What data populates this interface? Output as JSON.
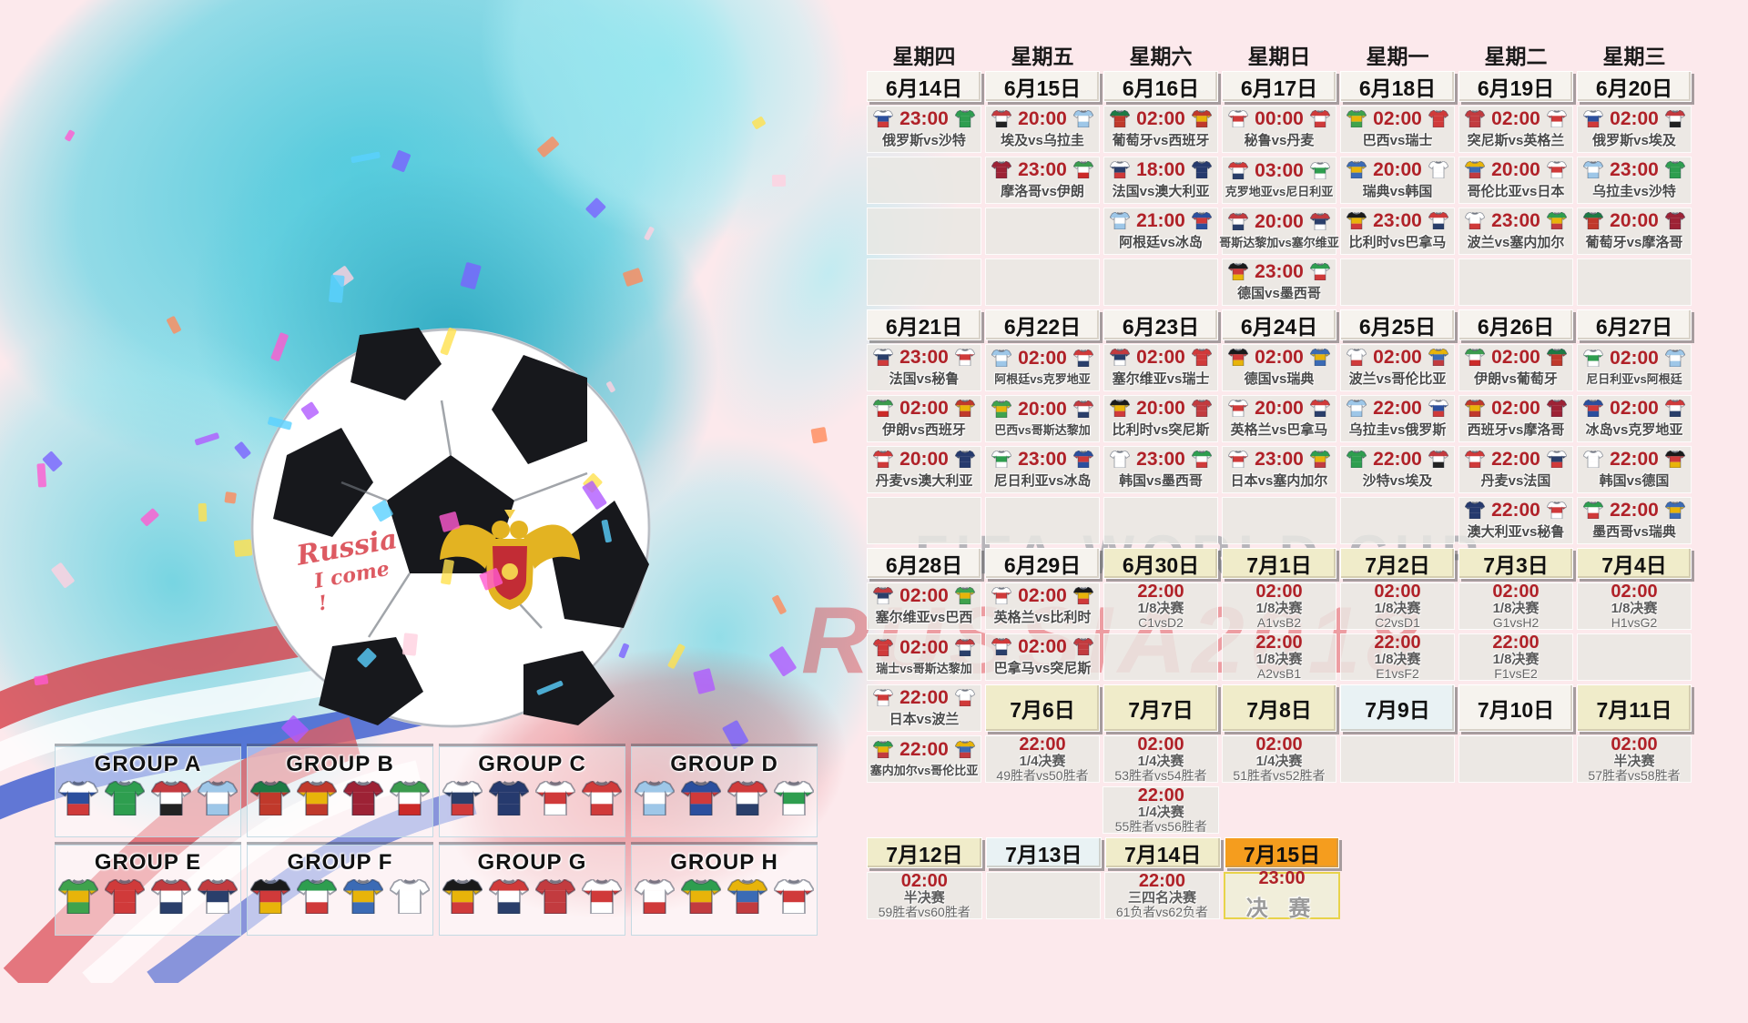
{
  "watermark": {
    "line1": "FIFA WORLD CUP",
    "line2": "RUSSIA2018"
  },
  "handwriting": {
    "line1": "Russia",
    "line2": "I come !"
  },
  "colors": {
    "time_red": "#b02128",
    "date_plain": "#f6f3ee",
    "date_cream": "#f0ecca",
    "date_orange": "#f59d1e",
    "background_pink": "#fce9ec",
    "splash_cyan": "#49c8db",
    "watermark_gray": "#8e969d",
    "watermark_red": "#d9363e"
  },
  "weekdays": [
    "星期四",
    "星期五",
    "星期六",
    "星期日",
    "星期一",
    "星期二",
    "星期三"
  ],
  "teams": {
    "俄罗斯": [
      "#ffffff",
      "#2b4f9e",
      "#d03a3a"
    ],
    "沙特": [
      "#2e9e4f",
      "#2e9e4f",
      "#2e9e4f"
    ],
    "埃及": [
      "#c43a3f",
      "#ffffff",
      "#222222"
    ],
    "乌拉圭": [
      "#9ec7e8",
      "#ffffff",
      "#9ec7e8"
    ],
    "摩洛哥": [
      "#9d2235",
      "#9d2235",
      "#9d2235"
    ],
    "伊朗": [
      "#3b9b4e",
      "#ffffff",
      "#cc2a28"
    ],
    "葡萄牙": [
      "#1d7a44",
      "#c0392b",
      "#c0392b"
    ],
    "西班牙": [
      "#c0392b",
      "#e8b40a",
      "#c0392b"
    ],
    "秘鲁": [
      "#ffffff",
      "#d03a3a",
      "#ffffff"
    ],
    "丹麦": [
      "#d03a3a",
      "#ffffff",
      "#d03a3a"
    ],
    "法国": [
      "#ffffff",
      "#2a3f6b",
      "#d03a3a"
    ],
    "澳大利亚": [
      "#263a6e",
      "#263a6e",
      "#263a6e"
    ],
    "克罗地亚": [
      "#d03a3a",
      "#ffffff",
      "#2a3f6b"
    ],
    "尼日利亚": [
      "#ffffff",
      "#2e9e4f",
      "#ffffff"
    ],
    "阿根廷": [
      "#9ec7e8",
      "#ffffff",
      "#9ec7e8"
    ],
    "冰岛": [
      "#2b4f9e",
      "#d03a3a",
      "#2b4f9e"
    ],
    "哥斯达黎加": [
      "#c23b3f",
      "#ffffff",
      "#2a3f6b"
    ],
    "塞尔维亚": [
      "#c23b3f",
      "#2a3f6b",
      "#ffffff"
    ],
    "德国": [
      "#1a1a1a",
      "#d03a3a",
      "#e8b40a"
    ],
    "墨西哥": [
      "#2e9e4f",
      "#ffffff",
      "#d03a3a"
    ],
    "巴西": [
      "#3fa34d",
      "#e8b40a",
      "#3fa34d"
    ],
    "瑞士": [
      "#d03a3a",
      "#d03a3a",
      "#d03a3a"
    ],
    "瑞典": [
      "#3b6bb5",
      "#e8b40a",
      "#3b6bb5"
    ],
    "韩国": [
      "#ffffff",
      "#ffffff",
      "#ffffff"
    ],
    "突尼斯": [
      "#c23b3f",
      "#c23b3f",
      "#c23b3f"
    ],
    "英格兰": [
      "#ffffff",
      "#d03a3a",
      "#ffffff"
    ],
    "哥伦比亚": [
      "#e8b40a",
      "#3b6bb5",
      "#c23b3f"
    ],
    "日本": [
      "#ffffff",
      "#d03a3a",
      "#ffffff"
    ],
    "比利时": [
      "#1a1a1a",
      "#e8b40a",
      "#d03a3a"
    ],
    "巴拿马": [
      "#d03a3a",
      "#ffffff",
      "#2a3f6b"
    ],
    "波兰": [
      "#ffffff",
      "#ffffff",
      "#d03a3a"
    ],
    "塞内加尔": [
      "#2e9e4f",
      "#e8b40a",
      "#c23b3f"
    ]
  },
  "schedule_rows": [
    [
      {
        "t": "wd",
        "label": "星期四"
      },
      {
        "t": "wd",
        "label": "星期五"
      },
      {
        "t": "wd",
        "label": "星期六"
      },
      {
        "t": "wd",
        "label": "星期日"
      },
      {
        "t": "wd",
        "label": "星期一"
      },
      {
        "t": "wd",
        "label": "星期二"
      },
      {
        "t": "wd",
        "label": "星期三"
      }
    ],
    [
      {
        "t": "date",
        "label": "6月14日",
        "v": "plain"
      },
      {
        "t": "date",
        "label": "6月15日",
        "v": "plain"
      },
      {
        "t": "date",
        "label": "6月16日",
        "v": "plain"
      },
      {
        "t": "date",
        "label": "6月17日",
        "v": "plain"
      },
      {
        "t": "date",
        "label": "6月18日",
        "v": "plain"
      },
      {
        "t": "date",
        "label": "6月19日",
        "v": "plain"
      },
      {
        "t": "date",
        "label": "6月20日",
        "v": "plain"
      }
    ],
    [
      {
        "t": "m",
        "time": "23:00",
        "home": "俄罗斯",
        "away": "沙特",
        "label": "俄罗斯vs沙特"
      },
      {
        "t": "m",
        "time": "20:00",
        "home": "埃及",
        "away": "乌拉圭",
        "label": "埃及vs乌拉圭"
      },
      {
        "t": "m",
        "time": "02:00",
        "home": "葡萄牙",
        "away": "西班牙",
        "label": "葡萄牙vs西班牙"
      },
      {
        "t": "m",
        "time": "00:00",
        "home": "秘鲁",
        "away": "丹麦",
        "label": "秘鲁vs丹麦"
      },
      {
        "t": "m",
        "time": "02:00",
        "home": "巴西",
        "away": "瑞士",
        "label": "巴西vs瑞士"
      },
      {
        "t": "m",
        "time": "02:00",
        "home": "突尼斯",
        "away": "英格兰",
        "label": "突尼斯vs英格兰"
      },
      {
        "t": "m",
        "time": "02:00",
        "home": "俄罗斯",
        "away": "埃及",
        "label": "俄罗斯vs埃及"
      }
    ],
    [
      {
        "t": "empty"
      },
      {
        "t": "m",
        "time": "23:00",
        "home": "摩洛哥",
        "away": "伊朗",
        "label": "摩洛哥vs伊朗"
      },
      {
        "t": "m",
        "time": "18:00",
        "home": "法国",
        "away": "澳大利亚",
        "label": "法国vs澳大利亚"
      },
      {
        "t": "m",
        "time": "03:00",
        "home": "克罗地亚",
        "away": "尼日利亚",
        "label": "克罗地亚vs尼日利亚"
      },
      {
        "t": "m",
        "time": "20:00",
        "home": "瑞典",
        "away": "韩国",
        "label": "瑞典vs韩国"
      },
      {
        "t": "m",
        "time": "20:00",
        "home": "哥伦比亚",
        "away": "日本",
        "label": "哥伦比亚vs日本"
      },
      {
        "t": "m",
        "time": "23:00",
        "home": "乌拉圭",
        "away": "沙特",
        "label": "乌拉圭vs沙特"
      }
    ],
    [
      {
        "t": "empty"
      },
      {
        "t": "empty"
      },
      {
        "t": "m",
        "time": "21:00",
        "home": "阿根廷",
        "away": "冰岛",
        "label": "阿根廷vs冰岛"
      },
      {
        "t": "m",
        "time": "20:00",
        "home": "哥斯达黎加",
        "away": "塞尔维亚",
        "label": "哥斯达黎加vs塞尔维亚"
      },
      {
        "t": "m",
        "time": "23:00",
        "home": "比利时",
        "away": "巴拿马",
        "label": "比利时vs巴拿马"
      },
      {
        "t": "m",
        "time": "23:00",
        "home": "波兰",
        "away": "塞内加尔",
        "label": "波兰vs塞内加尔"
      },
      {
        "t": "m",
        "time": "20:00",
        "home": "葡萄牙",
        "away": "摩洛哥",
        "label": "葡萄牙vs摩洛哥"
      }
    ],
    [
      {
        "t": "empty"
      },
      {
        "t": "empty"
      },
      {
        "t": "empty"
      },
      {
        "t": "m",
        "time": "23:00",
        "home": "德国",
        "away": "墨西哥",
        "label": "德国vs墨西哥"
      },
      {
        "t": "empty"
      },
      {
        "t": "empty"
      },
      {
        "t": "empty"
      }
    ],
    [
      {
        "t": "date",
        "label": "6月21日",
        "v": "plain"
      },
      {
        "t": "date",
        "label": "6月22日",
        "v": "plain"
      },
      {
        "t": "date",
        "label": "6月23日",
        "v": "plain"
      },
      {
        "t": "date",
        "label": "6月24日",
        "v": "plain"
      },
      {
        "t": "date",
        "label": "6月25日",
        "v": "plain"
      },
      {
        "t": "date",
        "label": "6月26日",
        "v": "plain"
      },
      {
        "t": "date",
        "label": "6月27日",
        "v": "plain"
      }
    ],
    [
      {
        "t": "m",
        "time": "23:00",
        "home": "法国",
        "away": "秘鲁",
        "label": "法国vs秘鲁"
      },
      {
        "t": "m",
        "time": "02:00",
        "home": "阿根廷",
        "away": "克罗地亚",
        "label": "阿根廷vs克罗地亚"
      },
      {
        "t": "m",
        "time": "02:00",
        "home": "塞尔维亚",
        "away": "瑞士",
        "label": "塞尔维亚vs瑞士"
      },
      {
        "t": "m",
        "time": "02:00",
        "home": "德国",
        "away": "瑞典",
        "label": "德国vs瑞典"
      },
      {
        "t": "m",
        "time": "02:00",
        "home": "波兰",
        "away": "哥伦比亚",
        "label": "波兰vs哥伦比亚"
      },
      {
        "t": "m",
        "time": "02:00",
        "home": "伊朗",
        "away": "葡萄牙",
        "label": "伊朗vs葡萄牙"
      },
      {
        "t": "m",
        "time": "02:00",
        "home": "尼日利亚",
        "away": "阿根廷",
        "label": "尼日利亚vs阿根廷"
      }
    ],
    [
      {
        "t": "m",
        "time": "02:00",
        "home": "伊朗",
        "away": "西班牙",
        "label": "伊朗vs西班牙"
      },
      {
        "t": "m",
        "time": "20:00",
        "home": "巴西",
        "away": "哥斯达黎加",
        "label": "巴西vs哥斯达黎加"
      },
      {
        "t": "m",
        "time": "20:00",
        "home": "比利时",
        "away": "突尼斯",
        "label": "比利时vs突尼斯"
      },
      {
        "t": "m",
        "time": "20:00",
        "home": "英格兰",
        "away": "巴拿马",
        "label": "英格兰vs巴拿马"
      },
      {
        "t": "m",
        "time": "22:00",
        "home": "乌拉圭",
        "away": "俄罗斯",
        "label": "乌拉圭vs俄罗斯"
      },
      {
        "t": "m",
        "time": "02:00",
        "home": "西班牙",
        "away": "摩洛哥",
        "label": "西班牙vs摩洛哥"
      },
      {
        "t": "m",
        "time": "02:00",
        "home": "冰岛",
        "away": "克罗地亚",
        "label": "冰岛vs克罗地亚"
      }
    ],
    [
      {
        "t": "m",
        "time": "20:00",
        "home": "丹麦",
        "away": "澳大利亚",
        "label": "丹麦vs澳大利亚"
      },
      {
        "t": "m",
        "time": "23:00",
        "home": "尼日利亚",
        "away": "冰岛",
        "label": "尼日利亚vs冰岛"
      },
      {
        "t": "m",
        "time": "23:00",
        "home": "韩国",
        "away": "墨西哥",
        "label": "韩国vs墨西哥"
      },
      {
        "t": "m",
        "time": "23:00",
        "home": "日本",
        "away": "塞内加尔",
        "label": "日本vs塞内加尔"
      },
      {
        "t": "m",
        "time": "22:00",
        "home": "沙特",
        "away": "埃及",
        "label": "沙特vs埃及"
      },
      {
        "t": "m",
        "time": "22:00",
        "home": "丹麦",
        "away": "法国",
        "label": "丹麦vs法国"
      },
      {
        "t": "m",
        "time": "22:00",
        "home": "韩国",
        "away": "德国",
        "label": "韩国vs德国"
      }
    ],
    [
      {
        "t": "empty"
      },
      {
        "t": "empty"
      },
      {
        "t": "empty"
      },
      {
        "t": "empty"
      },
      {
        "t": "empty"
      },
      {
        "t": "m",
        "time": "22:00",
        "home": "澳大利亚",
        "away": "秘鲁",
        "label": "澳大利亚vs秘鲁"
      },
      {
        "t": "m",
        "time": "22:00",
        "home": "墨西哥",
        "away": "瑞典",
        "label": "墨西哥vs瑞典"
      }
    ],
    [
      {
        "t": "date",
        "label": "6月28日",
        "v": "plain"
      },
      {
        "t": "date",
        "label": "6月29日",
        "v": "plain"
      },
      {
        "t": "date",
        "label": "6月30日",
        "v": "cream"
      },
      {
        "t": "date",
        "label": "7月1日",
        "v": "cream"
      },
      {
        "t": "date",
        "label": "7月2日",
        "v": "cream"
      },
      {
        "t": "date",
        "label": "7月3日",
        "v": "cream"
      },
      {
        "t": "date",
        "label": "7月4日",
        "v": "cream"
      }
    ],
    [
      {
        "t": "m",
        "time": "02:00",
        "home": "塞尔维亚",
        "away": "巴西",
        "label": "塞尔维亚vs巴西"
      },
      {
        "t": "m",
        "time": "02:00",
        "home": "英格兰",
        "away": "比利时",
        "label": "英格兰vs比利时"
      },
      {
        "t": "ko",
        "time": "22:00",
        "stage": "1/8决赛",
        "pair": "C1vsD2"
      },
      {
        "t": "ko",
        "time": "02:00",
        "stage": "1/8决赛",
        "pair": "A1vsB2"
      },
      {
        "t": "ko",
        "time": "02:00",
        "stage": "1/8决赛",
        "pair": "C2vsD1"
      },
      {
        "t": "ko",
        "time": "02:00",
        "stage": "1/8决赛",
        "pair": "G1vsH2"
      },
      {
        "t": "ko",
        "time": "02:00",
        "stage": "1/8决赛",
        "pair": "H1vsG2"
      }
    ],
    [
      {
        "t": "m",
        "time": "02:00",
        "home": "瑞士",
        "away": "哥斯达黎加",
        "label": "瑞士vs哥斯达黎加"
      },
      {
        "t": "m",
        "time": "02:00",
        "home": "巴拿马",
        "away": "突尼斯",
        "label": "巴拿马vs突尼斯"
      },
      {
        "t": "empty"
      },
      {
        "t": "ko",
        "time": "22:00",
        "stage": "1/8决赛",
        "pair": "A2vsB1"
      },
      {
        "t": "ko",
        "time": "22:00",
        "stage": "1/8决赛",
        "pair": "E1vsF2"
      },
      {
        "t": "ko",
        "time": "22:00",
        "stage": "1/8决赛",
        "pair": "F1vsE2"
      },
      {
        "t": "empty"
      }
    ],
    [
      {
        "t": "m",
        "time": "22:00",
        "home": "日本",
        "away": "波兰",
        "label": "日本vs波兰"
      },
      {
        "t": "date",
        "label": "7月6日",
        "v": "cream"
      },
      {
        "t": "date",
        "label": "7月7日",
        "v": "cream"
      },
      {
        "t": "date",
        "label": "7月8日",
        "v": "cream"
      },
      {
        "t": "date",
        "label": "7月9日",
        "v": "cool"
      },
      {
        "t": "date",
        "label": "7月10日",
        "v": "plain"
      },
      {
        "t": "date",
        "label": "7月11日",
        "v": "cream"
      }
    ],
    [
      {
        "t": "m",
        "time": "22:00",
        "home": "塞内加尔",
        "away": "哥伦比亚",
        "label": "塞内加尔vs哥伦比亚"
      },
      {
        "t": "ko",
        "time": "22:00",
        "stage": "1/4决赛",
        "pair": "49胜者vs50胜者"
      },
      {
        "t": "ko",
        "time": "02:00",
        "stage": "1/4决赛",
        "pair": "53胜者vs54胜者"
      },
      {
        "t": "ko",
        "time": "02:00",
        "stage": "1/4决赛",
        "pair": "51胜者vs52胜者"
      },
      {
        "t": "empty"
      },
      {
        "t": "empty"
      },
      {
        "t": "ko",
        "time": "02:00",
        "stage": "半决赛",
        "pair": "57胜者vs58胜者"
      }
    ],
    [
      {
        "t": "none"
      },
      {
        "t": "none"
      },
      {
        "t": "ko",
        "time": "22:00",
        "stage": "1/4决赛",
        "pair": "55胜者vs56胜者"
      },
      {
        "t": "none"
      },
      {
        "t": "none"
      },
      {
        "t": "none"
      },
      {
        "t": "none"
      }
    ],
    [
      {
        "t": "date",
        "label": "7月12日",
        "v": "cream"
      },
      {
        "t": "date",
        "label": "7月13日",
        "v": "cool"
      },
      {
        "t": "date",
        "label": "7月14日",
        "v": "cream"
      },
      {
        "t": "date",
        "label": "7月15日",
        "v": "orange"
      },
      {
        "t": "none"
      },
      {
        "t": "none"
      },
      {
        "t": "none"
      }
    ],
    [
      {
        "t": "ko",
        "time": "02:00",
        "stage": "半决赛",
        "pair": "59胜者vs60胜者"
      },
      {
        "t": "empty"
      },
      {
        "t": "ko",
        "time": "22:00",
        "stage": "三四名决赛",
        "pair": "61负者vs62负者"
      },
      {
        "t": "final",
        "time": "23:00",
        "stage": "决 赛"
      },
      {
        "t": "none"
      },
      {
        "t": "none"
      },
      {
        "t": "none"
      }
    ]
  ],
  "groups": [
    {
      "label": "GROUP A",
      "teams": [
        "俄罗斯",
        "沙特",
        "埃及",
        "乌拉圭"
      ]
    },
    {
      "label": "GROUP B",
      "teams": [
        "葡萄牙",
        "西班牙",
        "摩洛哥",
        "伊朗"
      ]
    },
    {
      "label": "GROUP C",
      "teams": [
        "法国",
        "澳大利亚",
        "秘鲁",
        "丹麦"
      ]
    },
    {
      "label": "GROUP D",
      "teams": [
        "阿根廷",
        "冰岛",
        "克罗地亚",
        "尼日利亚"
      ]
    },
    {
      "label": "GROUP E",
      "teams": [
        "巴西",
        "瑞士",
        "哥斯达黎加",
        "塞尔维亚"
      ]
    },
    {
      "label": "GROUP F",
      "teams": [
        "德国",
        "墨西哥",
        "瑞典",
        "韩国"
      ]
    },
    {
      "label": "GROUP G",
      "teams": [
        "比利时",
        "巴拿马",
        "突尼斯",
        "英格兰"
      ]
    },
    {
      "label": "GROUP H",
      "teams": [
        "波兰",
        "塞内加尔",
        "哥伦比亚",
        "日本"
      ]
    }
  ]
}
